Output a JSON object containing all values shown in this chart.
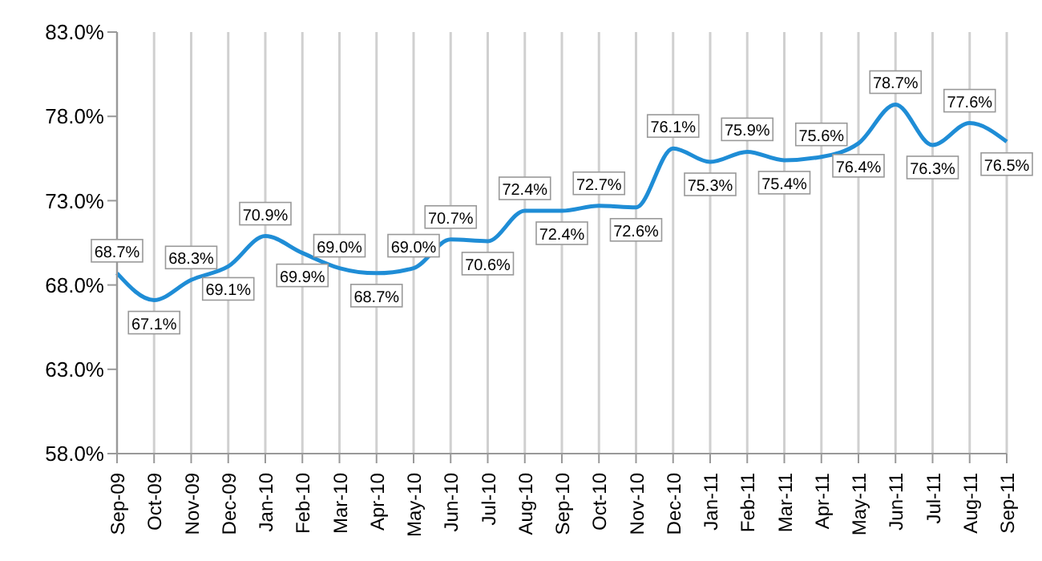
{
  "chart_data": {
    "type": "line",
    "categories": [
      "Sep-09",
      "Oct-09",
      "Nov-09",
      "Dec-09",
      "Jan-10",
      "Feb-10",
      "Mar-10",
      "Apr-10",
      "May-10",
      "Jun-10",
      "Jul-10",
      "Aug-10",
      "Sep-10",
      "Oct-10",
      "Nov-10",
      "Dec-10",
      "Jan-11",
      "Feb-11",
      "Mar-11",
      "Apr-11",
      "May-11",
      "Jun-11",
      "Jul-11",
      "Aug-11",
      "Sep-11"
    ],
    "series": [
      {
        "color": "#1f8dd6",
        "values": [
          68.7,
          67.1,
          68.3,
          69.1,
          70.9,
          69.9,
          69.0,
          68.7,
          69.0,
          70.7,
          70.6,
          72.4,
          72.4,
          72.7,
          72.6,
          76.1,
          75.3,
          75.9,
          75.4,
          75.6,
          76.4,
          78.7,
          76.3,
          77.6,
          76.5
        ]
      }
    ],
    "ylim": [
      58,
      83
    ],
    "yticks": [
      {
        "value": 58,
        "label": "58.0%"
      },
      {
        "value": 63,
        "label": "63.0%"
      },
      {
        "value": 68,
        "label": "68.0%"
      },
      {
        "value": 73,
        "label": "73.0%"
      },
      {
        "value": 78,
        "label": "78.0%"
      },
      {
        "value": 83,
        "label": "83.0%"
      }
    ],
    "value_labels": [
      "68.7%",
      "67.1%",
      "68.3%",
      "69.1%",
      "70.9%",
      "69.9%",
      "69.0%",
      "68.7%",
      "69.0%",
      "70.7%",
      "70.6%",
      "72.4%",
      "72.4%",
      "72.7%",
      "72.6%",
      "76.1%",
      "75.3%",
      "75.9%",
      "75.4%",
      "75.6%",
      "76.4%",
      "78.7%",
      "76.3%",
      "77.6%",
      "76.5%"
    ],
    "grid": "x",
    "legend": false,
    "marker": "none",
    "line_style": "solid"
  }
}
